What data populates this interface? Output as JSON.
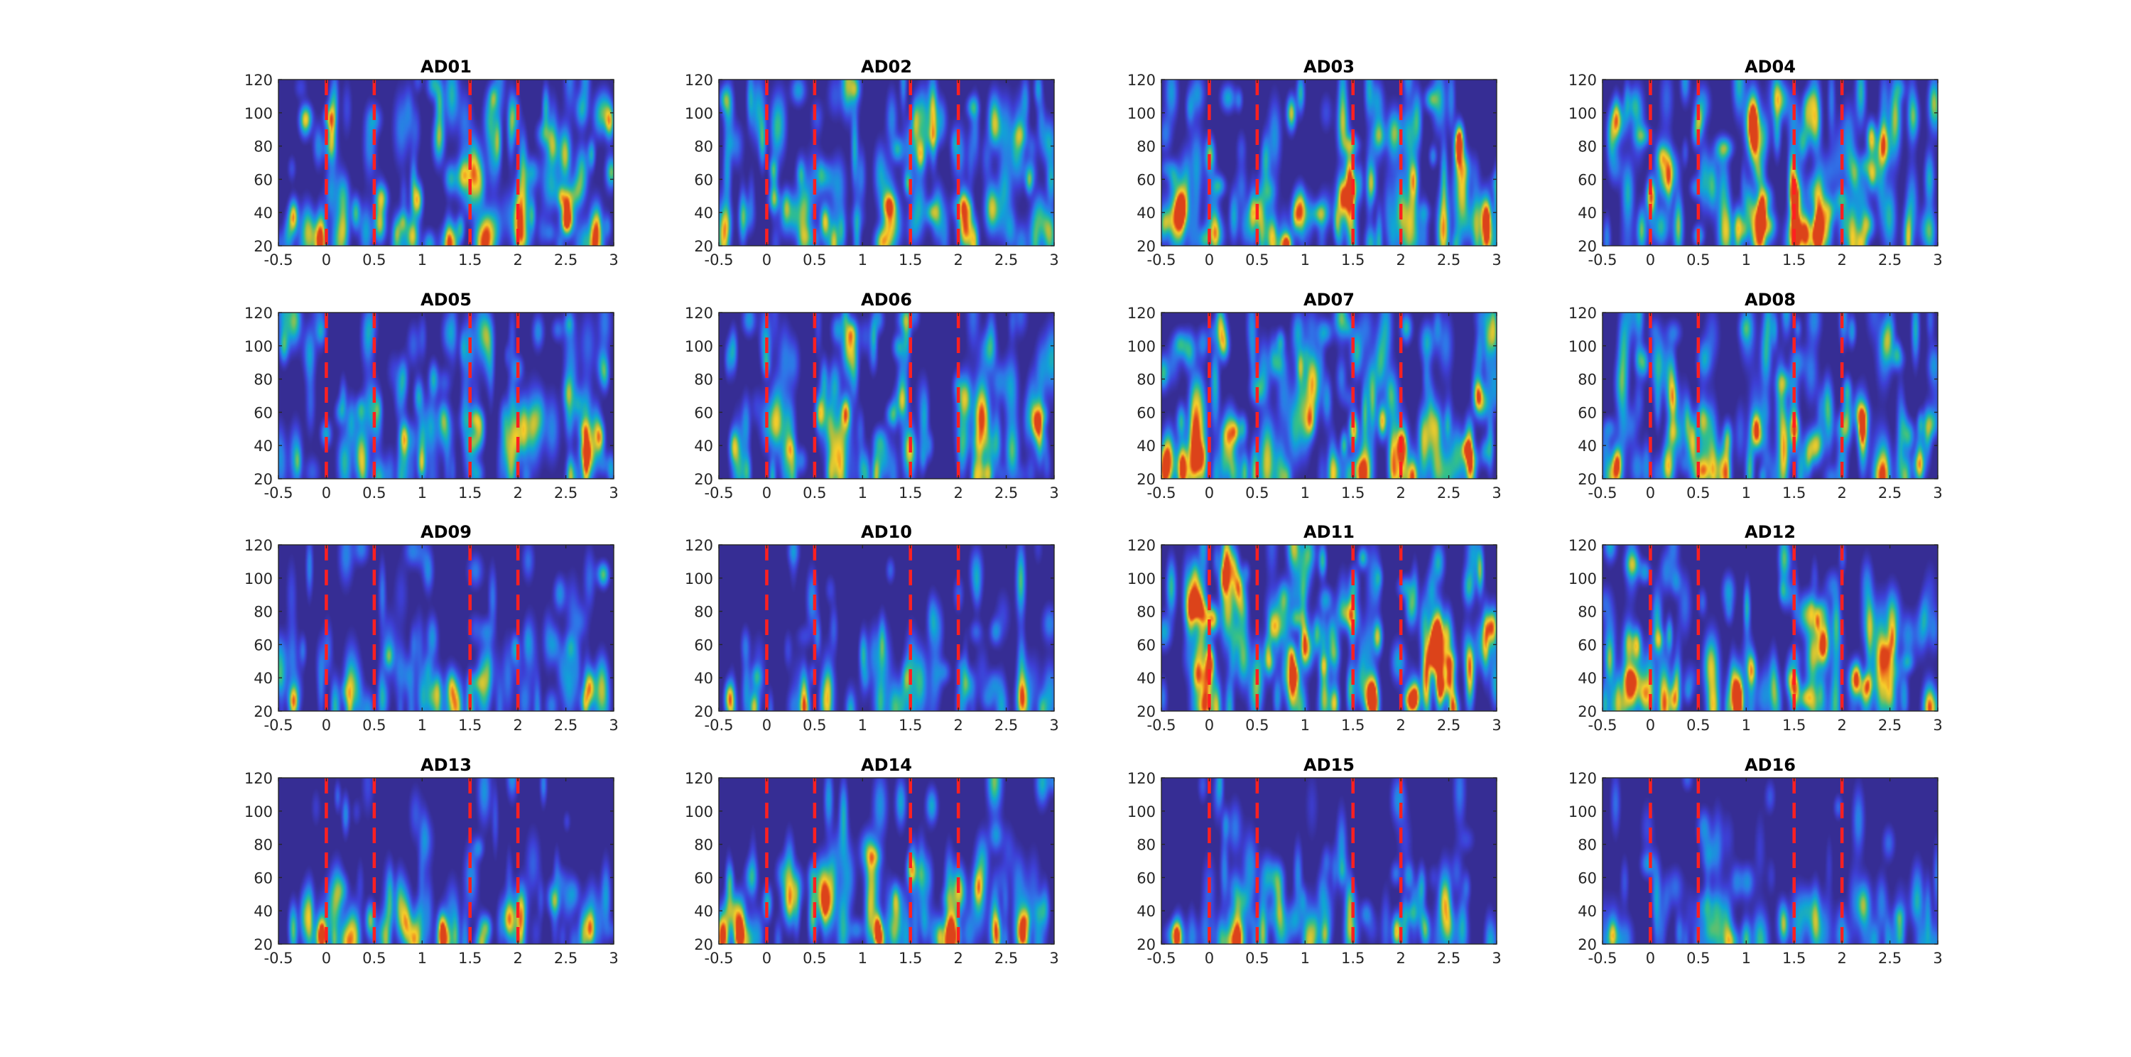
{
  "colors": {
    "background": "#3a2f9e",
    "marker_line": "#ff2020",
    "colormap": [
      "#352a87",
      "#3d3fd6",
      "#2f76e8",
      "#10a4d6",
      "#33c08a",
      "#b1be3e",
      "#f7ce2a",
      "#e85e1e",
      "#c81414"
    ]
  },
  "chart_data": {
    "type": "heatmap",
    "layout": {
      "rows": 4,
      "cols": 4
    },
    "x_range": [
      -0.5,
      3
    ],
    "y_range": [
      20,
      120
    ],
    "x_ticks": [
      "-0.5",
      "0",
      "0.5",
      "1",
      "1.5",
      "2",
      "2.5",
      "3"
    ],
    "y_ticks": [
      "20",
      "40",
      "60",
      "80",
      "100",
      "120"
    ],
    "marker_lines_x": [
      0,
      0.5,
      1.5,
      2
    ],
    "marker_style": "red dashed vertical",
    "colorbar": false,
    "panels": [
      {
        "title": "AD01",
        "intensity": 0.7,
        "low_freq_bias": 0.4,
        "hotspots": [
          [
            -0.35,
            38,
            0.9
          ],
          [
            0.95,
            48,
            0.8
          ],
          [
            2.95,
            95,
            0.8
          ],
          [
            2.5,
            38,
            0.75
          ],
          [
            0.3,
            40,
            0.6
          ]
        ]
      },
      {
        "title": "AD02",
        "intensity": 0.65,
        "low_freq_bias": 0.4,
        "hotspots": [
          [
            0.6,
            35,
            0.75
          ],
          [
            1.6,
            75,
            0.7
          ],
          [
            2.05,
            45,
            0.7
          ],
          [
            0.2,
            45,
            0.5
          ]
        ]
      },
      {
        "title": "AD03",
        "intensity": 0.75,
        "low_freq_bias": 0.3,
        "hotspots": [
          [
            0.85,
            100,
            0.8
          ],
          [
            0.0,
            75,
            0.7
          ],
          [
            0.9,
            38,
            0.75
          ],
          [
            2.6,
            80,
            0.65
          ],
          [
            1.4,
            50,
            0.55
          ]
        ]
      },
      {
        "title": "AD04",
        "intensity": 0.8,
        "low_freq_bias": 0.3,
        "hotspots": [
          [
            0.0,
            50,
            0.9
          ],
          [
            1.5,
            30,
            0.9
          ],
          [
            1.5,
            50,
            0.85
          ],
          [
            2.3,
            85,
            0.85
          ],
          [
            1.15,
            40,
            0.6
          ],
          [
            0.5,
            95,
            0.6
          ]
        ]
      },
      {
        "title": "AD05",
        "intensity": 0.6,
        "low_freq_bias": 0.3,
        "hotspots": [
          [
            2.85,
            45,
            0.75
          ],
          [
            0.8,
            45,
            0.65
          ],
          [
            -0.45,
            100,
            0.5
          ],
          [
            1.6,
            50,
            0.55
          ]
        ]
      },
      {
        "title": "AD06",
        "intensity": 0.6,
        "low_freq_bias": 0.35,
        "hotspots": [
          [
            0.82,
            60,
            0.85
          ],
          [
            0.55,
            60,
            0.65
          ],
          [
            -0.35,
            40,
            0.6
          ],
          [
            2.8,
            55,
            0.6
          ]
        ]
      },
      {
        "title": "AD07",
        "intensity": 0.85,
        "low_freq_bias": 0.3,
        "hotspots": [
          [
            1.5,
            50,
            0.95
          ],
          [
            1.8,
            55,
            0.9
          ],
          [
            2.0,
            40,
            0.8
          ],
          [
            2.8,
            70,
            0.8
          ],
          [
            1.05,
            55,
            0.6
          ],
          [
            -0.3,
            55,
            0.55
          ]
        ]
      },
      {
        "title": "AD08",
        "intensity": 0.7,
        "low_freq_bias": 0.35,
        "hotspots": [
          [
            -0.35,
            30,
            0.75
          ],
          [
            1.1,
            50,
            0.8
          ],
          [
            1.5,
            50,
            0.8
          ],
          [
            2.2,
            50,
            0.6
          ],
          [
            0.8,
            45,
            0.55
          ]
        ]
      },
      {
        "title": "AD09",
        "intensity": 0.4,
        "low_freq_bias": 0.6,
        "hotspots": [
          [
            -0.35,
            25,
            0.8
          ],
          [
            2.75,
            35,
            0.7
          ],
          [
            1.3,
            35,
            0.5
          ]
        ]
      },
      {
        "title": "AD10",
        "intensity": 0.35,
        "low_freq_bias": 0.6,
        "hotspots": [
          [
            -0.4,
            28,
            0.8
          ],
          [
            1.45,
            40,
            0.5
          ],
          [
            2.65,
            30,
            0.4
          ]
        ]
      },
      {
        "title": "AD11",
        "intensity": 0.95,
        "low_freq_bias": 0.2,
        "hotspots": [
          [
            0.0,
            50,
            0.85
          ],
          [
            0.15,
            100,
            0.8
          ],
          [
            0.3,
            95,
            0.7
          ],
          [
            1.3,
            25,
            0.8
          ],
          [
            1.75,
            65,
            0.8
          ],
          [
            2.5,
            40,
            0.8
          ],
          [
            2.15,
            30,
            0.7
          ],
          [
            0.65,
            70,
            0.55
          ]
        ]
      },
      {
        "title": "AD12",
        "intensity": 0.7,
        "low_freq_bias": 0.4,
        "hotspots": [
          [
            -0.15,
            60,
            0.75
          ],
          [
            1.05,
            45,
            0.75
          ],
          [
            1.5,
            35,
            0.7
          ],
          [
            2.15,
            40,
            0.9
          ],
          [
            1.8,
            60,
            0.6
          ],
          [
            0.9,
            25,
            0.6
          ]
        ]
      },
      {
        "title": "AD13",
        "intensity": 0.45,
        "low_freq_bias": 0.75,
        "hotspots": [
          [
            -0.05,
            25,
            0.75
          ],
          [
            0.45,
            35,
            0.65
          ],
          [
            1.2,
            30,
            0.75
          ],
          [
            2.75,
            30,
            0.7
          ],
          [
            1.9,
            35,
            0.5
          ]
        ]
      },
      {
        "title": "AD14",
        "intensity": 0.6,
        "low_freq_bias": 0.65,
        "hotspots": [
          [
            -0.3,
            25,
            0.8
          ],
          [
            1.15,
            28,
            0.7
          ],
          [
            1.5,
            65,
            0.7
          ],
          [
            2.65,
            28,
            0.6
          ],
          [
            0.0,
            45,
            0.55
          ],
          [
            2.2,
            55,
            0.5
          ]
        ]
      },
      {
        "title": "AD15",
        "intensity": 0.4,
        "low_freq_bias": 0.7,
        "hotspots": [
          [
            -0.35,
            25,
            0.8
          ],
          [
            1.95,
            28,
            0.9
          ],
          [
            2.25,
            28,
            0.6
          ],
          [
            1.2,
            25,
            0.5
          ]
        ]
      },
      {
        "title": "AD16",
        "intensity": 0.3,
        "low_freq_bias": 0.7,
        "hotspots": [
          [
            -0.4,
            25,
            0.75
          ],
          [
            2.6,
            25,
            0.45
          ],
          [
            1.4,
            30,
            0.3
          ]
        ]
      }
    ]
  }
}
